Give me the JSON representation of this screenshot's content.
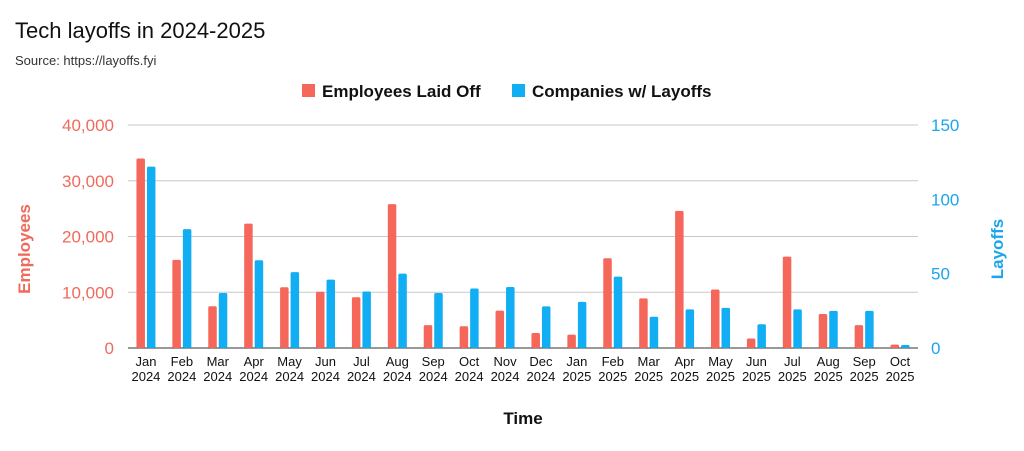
{
  "title": "Tech layoffs in 2024-2025",
  "subtitle": "Source: https://layoffs.fyi",
  "colors": {
    "employees": "#f5675a",
    "companies": "#12aef4",
    "grid": "#c8c8c8"
  },
  "chart_data": {
    "type": "bar",
    "categories": [
      [
        "Jan",
        "2024"
      ],
      [
        "Feb",
        "2024"
      ],
      [
        "Mar",
        "2024"
      ],
      [
        "Apr",
        "2024"
      ],
      [
        "May",
        "2024"
      ],
      [
        "Jun",
        "2024"
      ],
      [
        "Jul",
        "2024"
      ],
      [
        "Aug",
        "2024"
      ],
      [
        "Sep",
        "2024"
      ],
      [
        "Oct",
        "2024"
      ],
      [
        "Nov",
        "2024"
      ],
      [
        "Dec",
        "2024"
      ],
      [
        "Jan",
        "2025"
      ],
      [
        "Feb",
        "2025"
      ],
      [
        "Mar",
        "2025"
      ],
      [
        "Apr",
        "2025"
      ],
      [
        "May",
        "2025"
      ],
      [
        "Jun",
        "2025"
      ],
      [
        "Jul",
        "2025"
      ],
      [
        "Aug",
        "2025"
      ],
      [
        "Sep",
        "2025"
      ],
      [
        "Oct",
        "2025"
      ]
    ],
    "series": [
      {
        "name": "Employees Laid Off",
        "axis": "left",
        "values": [
          34000,
          15800,
          7500,
          22300,
          10900,
          10100,
          9100,
          25800,
          4100,
          3900,
          6700,
          2700,
          2400,
          16100,
          8900,
          24600,
          10500,
          1700,
          16400,
          6100,
          4100,
          600
        ]
      },
      {
        "name": "Companies w/ Layoffs",
        "axis": "right",
        "values": [
          122,
          80,
          37,
          59,
          51,
          46,
          38,
          50,
          37,
          40,
          41,
          28,
          31,
          48,
          21,
          26,
          27,
          16,
          26,
          25,
          25,
          2
        ]
      }
    ],
    "xlabel": "Time",
    "ylabel": "Employees",
    "y2label": "Layoffs",
    "ylim": [
      0,
      40000
    ],
    "y2lim": [
      0,
      150
    ],
    "yticks": [
      0,
      10000,
      20000,
      30000,
      40000
    ],
    "yticks_labels": [
      "0",
      "10,000",
      "20,000",
      "30,000",
      "40,000"
    ],
    "y2ticks": [
      0,
      50,
      100,
      150
    ],
    "y2ticks_labels": [
      "0",
      "50",
      "100",
      "150"
    ],
    "grid": true,
    "legend": "top-center"
  }
}
